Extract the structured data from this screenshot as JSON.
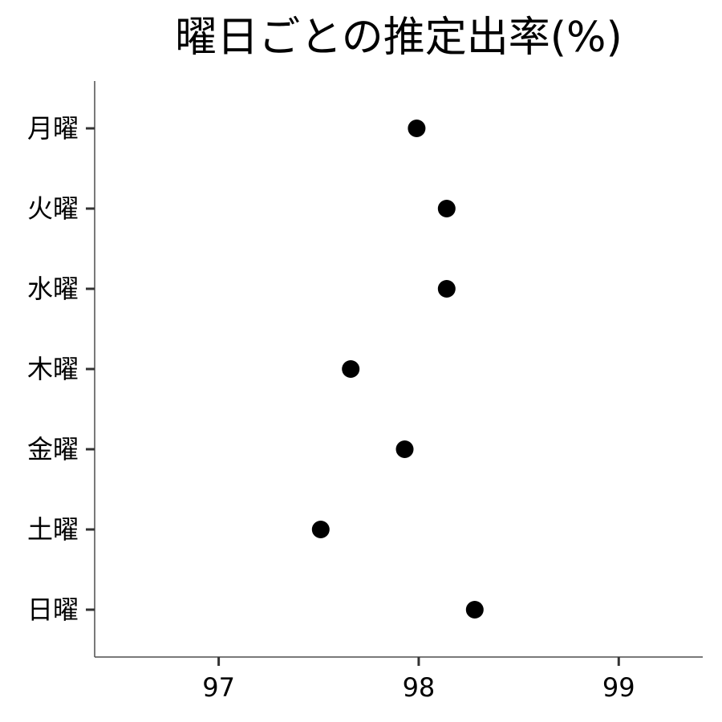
{
  "chart_data": {
    "type": "scatter",
    "title": "曜日ごとの推定出率(%)",
    "xlabel": "",
    "ylabel": "",
    "xlim": [
      96.38,
      99.42
    ],
    "x_ticks": [
      "97",
      "98",
      "99"
    ],
    "x_tick_values": [
      97,
      98,
      99
    ],
    "categories": [
      "月曜",
      "火曜",
      "水曜",
      "木曜",
      "金曜",
      "土曜",
      "日曜"
    ],
    "values": [
      97.99,
      98.14,
      98.14,
      97.66,
      97.93,
      97.51,
      98.28
    ],
    "grid": false,
    "legend": "none",
    "point_color": "#000000"
  }
}
